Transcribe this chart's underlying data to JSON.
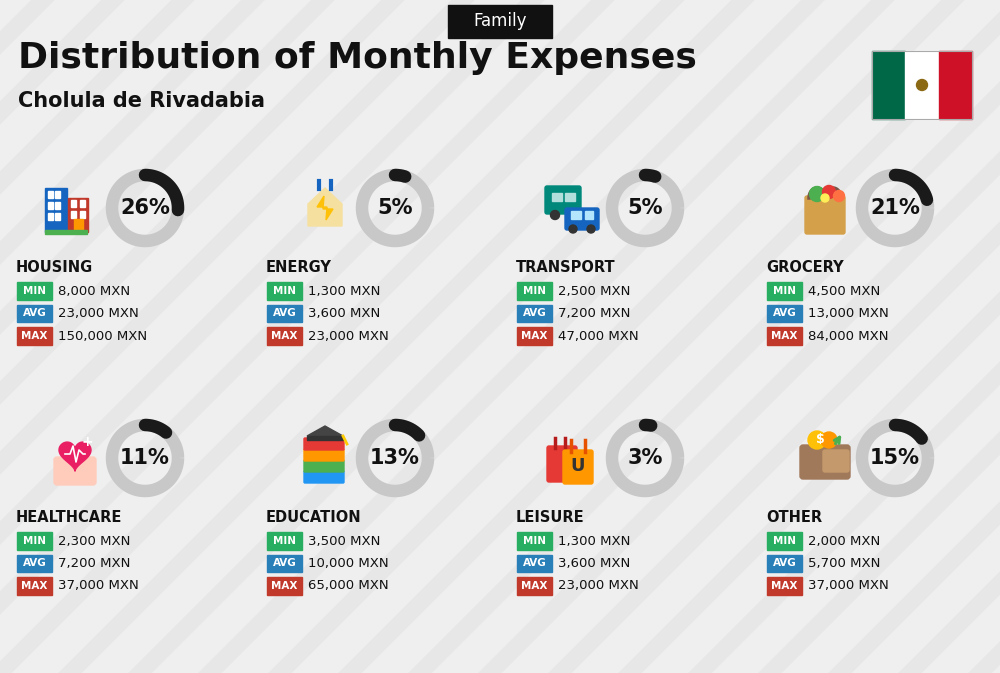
{
  "title": "Distribution of Monthly Expenses",
  "subtitle": "Cholula de Rivadabia",
  "tag": "Family",
  "bg_color": "#efefef",
  "categories": [
    {
      "name": "HOUSING",
      "pct": 26,
      "min": "8,000 MXN",
      "avg": "23,000 MXN",
      "max": "150,000 MXN",
      "icon": "housing",
      "row": 0,
      "col": 0
    },
    {
      "name": "ENERGY",
      "pct": 5,
      "min": "1,300 MXN",
      "avg": "3,600 MXN",
      "max": "23,000 MXN",
      "icon": "energy",
      "row": 0,
      "col": 1
    },
    {
      "name": "TRANSPORT",
      "pct": 5,
      "min": "2,500 MXN",
      "avg": "7,200 MXN",
      "max": "47,000 MXN",
      "icon": "transport",
      "row": 0,
      "col": 2
    },
    {
      "name": "GROCERY",
      "pct": 21,
      "min": "4,500 MXN",
      "avg": "13,000 MXN",
      "max": "84,000 MXN",
      "icon": "grocery",
      "row": 0,
      "col": 3
    },
    {
      "name": "HEALTHCARE",
      "pct": 11,
      "min": "2,300 MXN",
      "avg": "7,200 MXN",
      "max": "37,000 MXN",
      "icon": "healthcare",
      "row": 1,
      "col": 0
    },
    {
      "name": "EDUCATION",
      "pct": 13,
      "min": "3,500 MXN",
      "avg": "10,000 MXN",
      "max": "65,000 MXN",
      "icon": "education",
      "row": 1,
      "col": 1
    },
    {
      "name": "LEISURE",
      "pct": 3,
      "min": "1,300 MXN",
      "avg": "3,600 MXN",
      "max": "23,000 MXN",
      "icon": "leisure",
      "row": 1,
      "col": 2
    },
    {
      "name": "OTHER",
      "pct": 15,
      "min": "2,000 MXN",
      "avg": "5,700 MXN",
      "max": "37,000 MXN",
      "icon": "other",
      "row": 1,
      "col": 3
    }
  ],
  "color_min": "#27ae60",
  "color_avg": "#2980b9",
  "color_max": "#c0392b",
  "color_ring_filled": "#1a1a1a",
  "color_ring_empty": "#c8c8c8",
  "title_fontsize": 26,
  "subtitle_fontsize": 15,
  "tag_fontsize": 12,
  "cat_fontsize": 10.5,
  "val_fontsize": 9.5,
  "pct_fontsize": 15
}
